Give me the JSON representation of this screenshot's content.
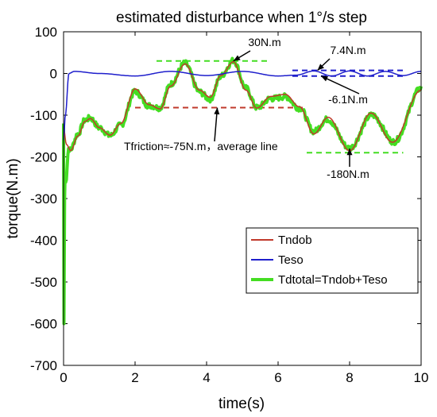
{
  "chart_data": {
    "type": "line",
    "title": "estimated disturbance when 1°/s step",
    "xlabel": "time(s)",
    "ylabel": "torque(N.m)",
    "xlim": [
      0,
      10
    ],
    "ylim": [
      -700,
      100
    ],
    "xticks": [
      0,
      2,
      4,
      6,
      8,
      10
    ],
    "yticks": [
      100,
      0,
      -100,
      -200,
      -300,
      -400,
      -500,
      -600,
      -700
    ],
    "grid": false,
    "legend_position": "bottom-right",
    "series": [
      {
        "name": "Tndob",
        "color": "#c0392b"
      },
      {
        "name": "Teso",
        "color": "#1f1fcc"
      },
      {
        "name": "Tdtotal=Tndob+Teso",
        "color": "#44dd22"
      }
    ],
    "model": {
      "tndob_points": [
        [
          0.0,
          -130
        ],
        [
          0.08,
          -170
        ],
        [
          0.2,
          -185
        ],
        [
          0.4,
          -150
        ],
        [
          0.6,
          -115
        ],
        [
          0.75,
          -108
        ],
        [
          1.0,
          -130
        ],
        [
          1.3,
          -148
        ],
        [
          1.6,
          -120
        ],
        [
          2.0,
          -37
        ],
        [
          2.4,
          -75
        ],
        [
          2.7,
          -85
        ],
        [
          3.0,
          -30
        ],
        [
          3.4,
          23
        ],
        [
          3.8,
          -40
        ],
        [
          4.1,
          -57
        ],
        [
          4.4,
          -5
        ],
        [
          4.75,
          28
        ],
        [
          5.1,
          -40
        ],
        [
          5.4,
          -83
        ],
        [
          5.8,
          -55
        ],
        [
          6.2,
          -50
        ],
        [
          6.6,
          -80
        ],
        [
          7.0,
          -145
        ],
        [
          7.4,
          -105
        ],
        [
          8.0,
          -185
        ],
        [
          8.6,
          -95
        ],
        [
          9.2,
          -165
        ],
        [
          10.0,
          -40
        ]
      ],
      "teso_points": [
        [
          0.0,
          -160
        ],
        [
          0.05,
          -100
        ],
        [
          0.15,
          0
        ],
        [
          0.3,
          5
        ],
        [
          1.0,
          0
        ],
        [
          2.0,
          -6
        ],
        [
          3.0,
          5
        ],
        [
          4.0,
          -5
        ],
        [
          5.0,
          5
        ],
        [
          6.0,
          -6
        ],
        [
          6.5,
          -4
        ],
        [
          7.0,
          6
        ],
        [
          7.5,
          -6
        ],
        [
          8.0,
          6
        ],
        [
          8.5,
          -6
        ],
        [
          9.0,
          5
        ],
        [
          9.5,
          -5
        ],
        [
          10.0,
          5
        ]
      ],
      "initial_spike_min": -600
    },
    "annotations": [
      {
        "text": "30N.m",
        "target": [
          4.75,
          30
        ],
        "guide_y": 30,
        "guide_x": [
          2.6,
          5.8
        ],
        "color": "#44dd22"
      },
      {
        "text": "7.4N.m",
        "target": [
          7.1,
          7.4
        ],
        "guide_y": 7.4,
        "guide_x": [
          6.4,
          9.5
        ],
        "color": "#1f1fcc"
      },
      {
        "text": "-6.1N.m",
        "target": [
          7.2,
          -6.1
        ],
        "guide_y": -6.1,
        "guide_x": [
          6.4,
          9.5
        ],
        "color": "#1f1fcc"
      },
      {
        "text": "Tfriction≈-75N.m，average line",
        "target": [
          4.3,
          -82
        ],
        "guide_y": -82,
        "guide_x": [
          2.0,
          6.8
        ],
        "color": "#c0392b"
      },
      {
        "text": "-180N.m",
        "target": [
          8.0,
          -180
        ],
        "guide_y": -190,
        "guide_x": [
          6.8,
          9.5
        ],
        "color": "#44dd22"
      }
    ]
  }
}
